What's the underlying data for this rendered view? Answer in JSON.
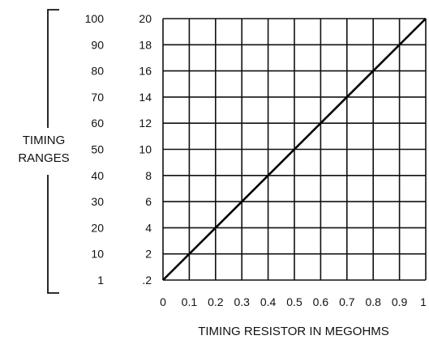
{
  "chart_data": {
    "type": "line",
    "title": "",
    "xlabel": "TIMING RESISTOR IN MEGOHMS",
    "ylabel": [
      "TIMING",
      "RANGES"
    ],
    "x_ticks": [
      "0",
      "0.1",
      "0.2",
      "0.3",
      "0.4",
      "0.5",
      "0.6",
      "0.7",
      "0.8",
      "0.9",
      "1"
    ],
    "y_ticks_inner": [
      ".2",
      "2",
      "4",
      "6",
      "8",
      "10",
      "12",
      "14",
      "16",
      "18",
      "20"
    ],
    "y_ticks_outer": [
      "1",
      "10",
      "20",
      "30",
      "40",
      "50",
      "60",
      "70",
      "80",
      "90",
      "100"
    ],
    "xlim": [
      0,
      1
    ],
    "ylim": [
      0.2,
      20
    ],
    "grid": true,
    "legend": "none",
    "series": [
      {
        "x": [
          0,
          1
        ],
        "y": [
          0.2,
          20
        ]
      }
    ]
  }
}
